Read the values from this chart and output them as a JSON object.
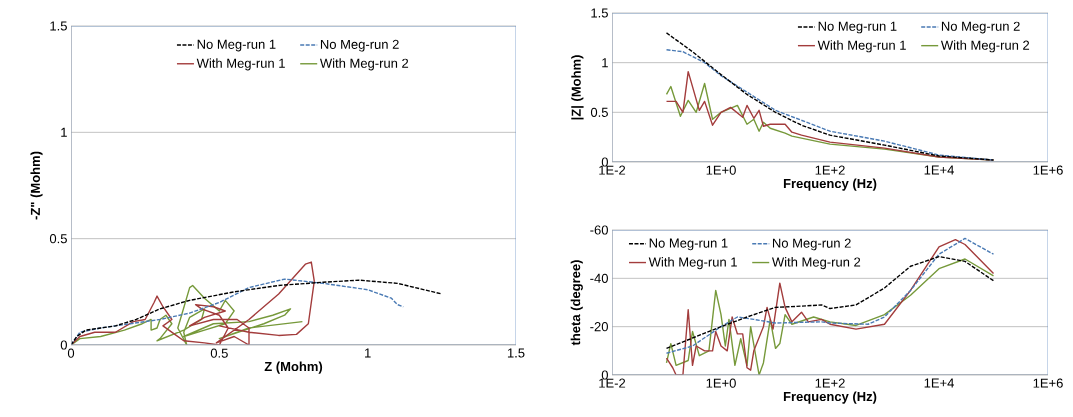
{
  "chart_data": [
    {
      "type": "line",
      "xlabel": "Z (Mohm)",
      "ylabel": "-Z\" (Mohm)",
      "xlim": [
        0,
        1.5
      ],
      "ylim": [
        0,
        1.5
      ],
      "xticks": [
        0,
        0.5,
        1,
        1.5
      ],
      "yticks": [
        0,
        0.5,
        1,
        1.5
      ],
      "grid": "y",
      "legend": "top",
      "marker": "none",
      "series": [
        {
          "name": "No Meg-run 1",
          "color": "#000000",
          "line_style": "dashed",
          "x": [
            0,
            0.02,
            0.05,
            0.1,
            0.15,
            0.22,
            0.3,
            0.4,
            0.55,
            0.7,
            0.85,
            0.97,
            1.1,
            1.25
          ],
          "values": [
            0,
            0.04,
            0.07,
            0.08,
            0.09,
            0.12,
            0.17,
            0.21,
            0.25,
            0.28,
            0.295,
            0.305,
            0.29,
            0.24
          ]
        },
        {
          "name": "No Meg-run 2",
          "color": "#4a7ab4",
          "line_style": "dashed",
          "x": [
            0,
            0.03,
            0.1,
            0.2,
            0.3,
            0.4,
            0.5,
            0.6,
            0.72,
            0.85,
            1.0,
            1.08,
            1.1,
            1.12
          ],
          "values": [
            0,
            0.06,
            0.08,
            0.1,
            0.12,
            0.15,
            0.2,
            0.27,
            0.31,
            0.29,
            0.26,
            0.22,
            0.19,
            0.18
          ]
        },
        {
          "name": "With Meg-run 1",
          "color": "#a33c3c",
          "line_style": "solid",
          "x": [
            0,
            0.03,
            0.08,
            0.15,
            0.21,
            0.25,
            0.28,
            0.29,
            0.31,
            0.34,
            0.31,
            0.35,
            0.38,
            0.45,
            0.5,
            0.53,
            0.5,
            0.44,
            0.42,
            0.48,
            0.52,
            0.45,
            0.4,
            0.48,
            0.56,
            0.6,
            0.6,
            0.55,
            0.49,
            0.6,
            0.7,
            0.79,
            0.81,
            0.82,
            0.8,
            0.76,
            0.7,
            0.6,
            0.5
          ],
          "values": [
            0,
            0.04,
            0.06,
            0.06,
            0.11,
            0.12,
            0.2,
            0.23,
            0.18,
            0.12,
            0.09,
            0.05,
            0.02,
            0.01,
            0,
            0.08,
            0.14,
            0.17,
            0.19,
            0.18,
            0.16,
            0.13,
            0.09,
            0.12,
            0.12,
            0.08,
            0,
            0.04,
            0.01,
            0.12,
            0.24,
            0.38,
            0.39,
            0.3,
            0.1,
            0.05,
            0.045,
            0.06,
            0.09
          ]
        },
        {
          "name": "With Meg-run 2",
          "color": "#76993a",
          "line_style": "solid",
          "x": [
            0,
            0.03,
            0.1,
            0.18,
            0.24,
            0.27,
            0.27,
            0.29,
            0.3,
            0.32,
            0.34,
            0.3,
            0.29,
            0.38,
            0.44,
            0.45,
            0.4,
            0.38,
            0.39,
            0.36,
            0.4,
            0.41,
            0.45,
            0.5,
            0.52,
            0.55,
            0.52,
            0.45,
            0.38,
            0.48,
            0.6,
            0.68,
            0.74,
            0.72,
            0.65,
            0.5,
            0.6,
            0.78
          ],
          "values": [
            0,
            0.03,
            0.04,
            0.07,
            0.1,
            0.12,
            0.07,
            0.08,
            0.12,
            0.14,
            0.1,
            0.03,
            0.02,
            0.07,
            0.12,
            0.17,
            0.13,
            0.06,
            0,
            0.08,
            0.27,
            0.28,
            0.22,
            0.16,
            0.21,
            0.16,
            0.1,
            0.07,
            0.04,
            0.1,
            0.11,
            0.14,
            0.17,
            0.14,
            0.1,
            0.03,
            0.08,
            0.11
          ]
        }
      ]
    },
    {
      "type": "line",
      "xlabel": "Frequency (Hz)",
      "ylabel": "|Z| (Mohm)",
      "log": "x",
      "xlim": [
        0.01,
        1000000
      ],
      "ylim": [
        0,
        1.5
      ],
      "xticks": [
        {
          "value": 0.01,
          "label": "1E-2"
        },
        {
          "value": 1,
          "label": "1E+0"
        },
        {
          "value": 100,
          "label": "1E+2"
        },
        {
          "value": 10000,
          "label": "1E+4"
        },
        {
          "value": 1000000,
          "label": "1E+6"
        }
      ],
      "yticks": [
        0,
        0.5,
        1,
        1.5
      ],
      "grid": "y",
      "legend": "top right",
      "marker": "none",
      "series": [
        {
          "name": "No Meg-run 1",
          "color": "#000000",
          "line_style": "dashed",
          "x": [
            0.1,
            0.3,
            1,
            3,
            10,
            30,
            100,
            1000,
            10000,
            100000
          ],
          "values": [
            1.3,
            1.11,
            0.88,
            0.68,
            0.5,
            0.37,
            0.27,
            0.17,
            0.06,
            0.02
          ]
        },
        {
          "name": "No Meg-run 2",
          "color": "#4a7ab4",
          "line_style": "dashed",
          "x": [
            0.1,
            0.2,
            0.5,
            1,
            10,
            100,
            1000,
            10000,
            100000
          ],
          "values": [
            1.13,
            1.11,
            1.0,
            0.87,
            0.52,
            0.31,
            0.21,
            0.07,
            0.02
          ]
        },
        {
          "name": "With Meg-run 1",
          "color": "#a33c3c",
          "line_style": "solid",
          "x": [
            0.1,
            0.15,
            0.2,
            0.25,
            0.4,
            0.5,
            0.7,
            1,
            1.5,
            2.5,
            3,
            4,
            5,
            6,
            8,
            15,
            20,
            30,
            100,
            1000,
            10000,
            100000
          ],
          "values": [
            0.61,
            0.61,
            0.5,
            0.91,
            0.52,
            0.61,
            0.37,
            0.5,
            0.55,
            0.45,
            0.57,
            0.44,
            0.52,
            0.36,
            0.38,
            0.38,
            0.3,
            0.27,
            0.2,
            0.14,
            0.05,
            0.02
          ]
        },
        {
          "name": "With Meg-run 2",
          "color": "#76993a",
          "line_style": "solid",
          "x": [
            0.1,
            0.12,
            0.18,
            0.25,
            0.35,
            0.5,
            0.7,
            1,
            2,
            3,
            4,
            5,
            6,
            8,
            15,
            20,
            100,
            1000,
            10000,
            100000
          ],
          "values": [
            0.68,
            0.76,
            0.46,
            0.62,
            0.5,
            0.79,
            0.43,
            0.5,
            0.57,
            0.38,
            0.43,
            0.31,
            0.4,
            0.34,
            0.29,
            0.26,
            0.18,
            0.13,
            0.05,
            0.02
          ]
        }
      ]
    },
    {
      "type": "line",
      "xlabel": "Frequency (Hz)",
      "ylabel": "theta (degree)",
      "log": "x",
      "xlim": [
        0.01,
        1000000
      ],
      "ylim": [
        0,
        -60
      ],
      "xticks": [
        {
          "value": 0.01,
          "label": "1E-2"
        },
        {
          "value": 1,
          "label": "1E+0"
        },
        {
          "value": 100,
          "label": "1E+2"
        },
        {
          "value": 10000,
          "label": "1E+4"
        },
        {
          "value": 1000000,
          "label": "1E+6"
        }
      ],
      "yticks": [
        0,
        -20,
        -40,
        -60
      ],
      "grid": "y",
      "legend": "top left",
      "marker": "none",
      "series": [
        {
          "name": "No Meg-run 1",
          "color": "#000000",
          "line_style": "dashed",
          "x": [
            0.1,
            1,
            3,
            10,
            30,
            70,
            100,
            300,
            1000,
            3000,
            10000,
            30000,
            100000
          ],
          "values": [
            -11,
            -20,
            -24,
            -28,
            -28.5,
            -29,
            -27.5,
            -29,
            -36,
            -45,
            -49,
            -47,
            -39
          ]
        },
        {
          "name": "No Meg-run 2",
          "color": "#4a7ab4",
          "line_style": "dashed",
          "x": [
            0.1,
            0.3,
            1,
            2,
            4,
            10,
            70,
            100,
            500,
            1000,
            3000,
            10000,
            30000,
            100000
          ],
          "values": [
            -9,
            -12,
            -20,
            -24,
            -23,
            -21.5,
            -22,
            -21.5,
            -21,
            -24,
            -35,
            -50,
            -56.5,
            -50
          ]
        },
        {
          "name": "With Meg-run 1",
          "color": "#a33c3c",
          "line_style": "solid",
          "x": [
            0.1,
            0.13,
            0.15,
            0.2,
            0.25,
            0.3,
            0.35,
            0.5,
            0.7,
            0.8,
            1,
            1.3,
            1.6,
            2,
            2.5,
            3,
            3.5,
            4,
            6,
            7,
            9,
            12,
            15,
            20,
            30,
            40,
            70,
            100,
            300,
            1000,
            3000,
            10000,
            20000,
            30000,
            100000
          ],
          "values": [
            -7,
            -3,
            0,
            0,
            -27,
            -4,
            -12,
            -10,
            -10,
            -18,
            -12,
            -10,
            -24,
            -17,
            -17,
            -3,
            -2,
            -10,
            -20,
            -28,
            -19,
            -38,
            -28,
            -22,
            -26,
            -22,
            -23,
            -21,
            -19,
            -21,
            -35,
            -53,
            -56,
            -54,
            -42
          ]
        },
        {
          "name": "With Meg-run 2",
          "color": "#76993a",
          "line_style": "solid",
          "x": [
            0.1,
            0.12,
            0.15,
            0.25,
            0.3,
            0.4,
            0.6,
            0.8,
            1,
            1.2,
            1.4,
            1.8,
            2.3,
            3,
            3.5,
            5,
            6,
            8,
            10,
            12,
            15,
            20,
            50,
            100,
            300,
            1000,
            3000,
            10000,
            30000,
            100000
          ],
          "values": [
            -5,
            -13,
            -4,
            -6,
            -18,
            -8,
            -10,
            -35,
            -25,
            -12,
            -23,
            -4,
            -15,
            -4,
            -20,
            0,
            -5,
            -23,
            -11,
            -13,
            -25,
            -21,
            -24,
            -22,
            -20.5,
            -25,
            -33,
            -44,
            -48,
            -41
          ]
        }
      ]
    }
  ]
}
